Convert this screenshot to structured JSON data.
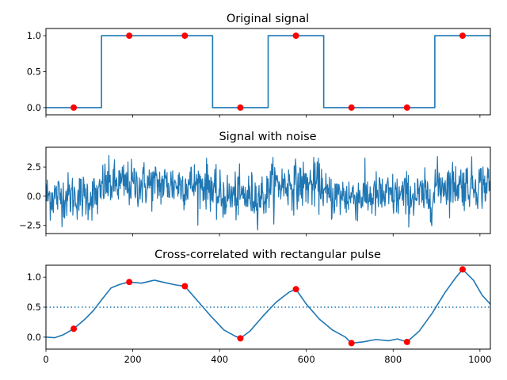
{
  "colors": {
    "line": "#1f77b4",
    "marker": "#ff0000",
    "threshold": "#1f77b4"
  },
  "chart_data": [
    {
      "type": "line",
      "title": "Original signal",
      "xlim": [
        0,
        1024
      ],
      "ylim": [
        -0.1,
        1.1
      ],
      "yticks": [
        0.0,
        0.5,
        1.0
      ],
      "ytick_labels": [
        "0.0",
        "0.5",
        "1.0"
      ],
      "xticks": [
        0,
        200,
        400,
        600,
        800,
        1000
      ],
      "xtick_labels_shown": false,
      "series": [
        {
          "style": "step",
          "x": [
            0,
            128,
            128,
            384,
            384,
            512,
            512,
            640,
            640,
            896,
            896,
            1024
          ],
          "values": [
            0,
            0,
            1,
            1,
            0,
            0,
            1,
            1,
            0,
            0,
            1,
            1
          ]
        }
      ],
      "markers": {
        "x": [
          64,
          192,
          320,
          448,
          576,
          704,
          832,
          960
        ],
        "values": [
          0,
          1,
          1,
          0,
          1,
          0,
          0,
          1
        ]
      }
    },
    {
      "type": "line",
      "title": "Signal with noise",
      "xlim": [
        0,
        1024
      ],
      "ylim": [
        -3.2,
        4.2
      ],
      "yticks": [
        -2.5,
        0.0,
        2.5
      ],
      "ytick_labels": [
        "−2.5",
        "0.0",
        "2.5"
      ],
      "xticks": [
        0,
        200,
        400,
        600,
        800,
        1000
      ],
      "xtick_labels_shown": false,
      "noise": {
        "base_segments": [
          [
            0,
            128,
            0
          ],
          [
            128,
            384,
            1
          ],
          [
            384,
            512,
            0
          ],
          [
            512,
            640,
            1
          ],
          [
            640,
            896,
            0
          ],
          [
            896,
            1024,
            1
          ]
        ],
        "std": 1.0,
        "range": [
          -2.9,
          3.8
        ]
      }
    },
    {
      "type": "line",
      "title": "Cross-correlated with rectangular pulse",
      "xlim": [
        0,
        1024
      ],
      "ylim": [
        -0.2,
        1.2
      ],
      "yticks": [
        0.0,
        0.5,
        1.0
      ],
      "ytick_labels": [
        "0.0",
        "0.5",
        "1.0"
      ],
      "xticks": [
        0,
        200,
        400,
        600,
        800,
        1000
      ],
      "xtick_labels": [
        "0",
        "200",
        "400",
        "600",
        "800",
        "1000"
      ],
      "threshold": 0.5,
      "series": [
        {
          "x": [
            0,
            20,
            40,
            64,
            90,
            110,
            128,
            150,
            170,
            192,
            220,
            250,
            280,
            300,
            320,
            350,
            380,
            410,
            435,
            448,
            470,
            500,
            530,
            560,
            576,
            600,
            630,
            660,
            690,
            704,
            730,
            760,
            790,
            810,
            832,
            860,
            890,
            920,
            945,
            960,
            985,
            1005,
            1024
          ],
          "values": [
            0.0,
            -0.01,
            0.04,
            0.14,
            0.3,
            0.45,
            0.62,
            0.82,
            0.88,
            0.92,
            0.9,
            0.95,
            0.9,
            0.87,
            0.85,
            0.6,
            0.35,
            0.12,
            0.02,
            -0.02,
            0.1,
            0.35,
            0.58,
            0.75,
            0.8,
            0.55,
            0.3,
            0.12,
            0.0,
            -0.1,
            -0.08,
            -0.04,
            -0.06,
            -0.03,
            -0.08,
            0.1,
            0.4,
            0.75,
            1.0,
            1.13,
            0.95,
            0.7,
            0.55
          ]
        }
      ],
      "markers": {
        "x": [
          64,
          192,
          320,
          448,
          576,
          704,
          832,
          960
        ],
        "values": [
          0.14,
          0.92,
          0.85,
          -0.02,
          0.8,
          -0.1,
          -0.08,
          1.13
        ]
      }
    }
  ]
}
